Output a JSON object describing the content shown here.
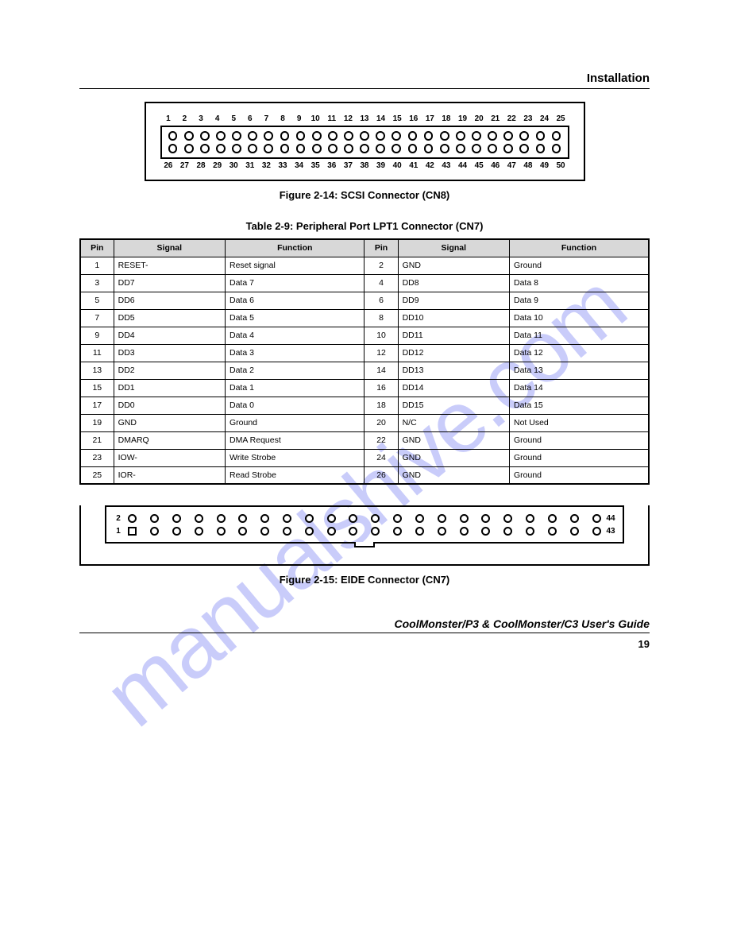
{
  "watermark": "manualshive.com",
  "header": {
    "title": "Installation"
  },
  "figure1": {
    "caption": "Figure 2-14: SCSI Connector (CN8)",
    "top_labels": [
      "1",
      "2",
      "3",
      "4",
      "5",
      "6",
      "7",
      "8",
      "9",
      "10",
      "11",
      "12",
      "13",
      "14",
      "15",
      "16",
      "17",
      "18",
      "19",
      "20",
      "21",
      "22",
      "23",
      "24",
      "25"
    ],
    "bottom_labels": [
      "26",
      "27",
      "28",
      "29",
      "30",
      "31",
      "32",
      "33",
      "34",
      "35",
      "36",
      "37",
      "38",
      "39",
      "40",
      "41",
      "42",
      "43",
      "44",
      "45",
      "46",
      "47",
      "48",
      "49",
      "50"
    ]
  },
  "table": {
    "title": "Table 2-9: Peripheral Port LPT1 Connector (CN7)",
    "headers": [
      "Pin",
      "Signal",
      "Function",
      "Pin",
      "Signal",
      "Function"
    ],
    "rows": [
      [
        "1",
        "RESET-",
        "Reset signal",
        "2",
        "GND",
        "Ground"
      ],
      [
        "3",
        "DD7",
        "Data 7",
        "4",
        "DD8",
        "Data 8"
      ],
      [
        "5",
        "DD6",
        "Data 6",
        "6",
        "DD9",
        "Data 9"
      ],
      [
        "7",
        "DD5",
        "Data 5",
        "8",
        "DD10",
        "Data 10"
      ],
      [
        "9",
        "DD4",
        "Data 4",
        "10",
        "DD11",
        "Data 11"
      ],
      [
        "11",
        "DD3",
        "Data 3",
        "12",
        "DD12",
        "Data 12"
      ],
      [
        "13",
        "DD2",
        "Data 2",
        "14",
        "DD13",
        "Data 13"
      ],
      [
        "15",
        "DD1",
        "Data 1",
        "16",
        "DD14",
        "Data 14"
      ],
      [
        "17",
        "DD0",
        "Data 0",
        "18",
        "DD15",
        "Data 15"
      ],
      [
        "19",
        "GND",
        "Ground",
        "20",
        "N/C",
        "Not Used"
      ],
      [
        "21",
        "DMARQ",
        "DMA Request",
        "22",
        "GND",
        "Ground"
      ],
      [
        "23",
        "IOW-",
        "Write Strobe",
        "24",
        "GND",
        "Ground"
      ],
      [
        "25",
        "IOR-",
        "Read Strobe",
        "26",
        "GND",
        "Ground"
      ]
    ]
  },
  "figure2": {
    "caption": "Figure 2-15: EIDE Connector (CN7)",
    "left_top": "2",
    "left_bottom": "1",
    "right_top": "44",
    "right_bottom": "43"
  },
  "footer": {
    "title": "CoolMonster/P3 & CoolMonster/C3 User's Guide",
    "page": "19"
  }
}
